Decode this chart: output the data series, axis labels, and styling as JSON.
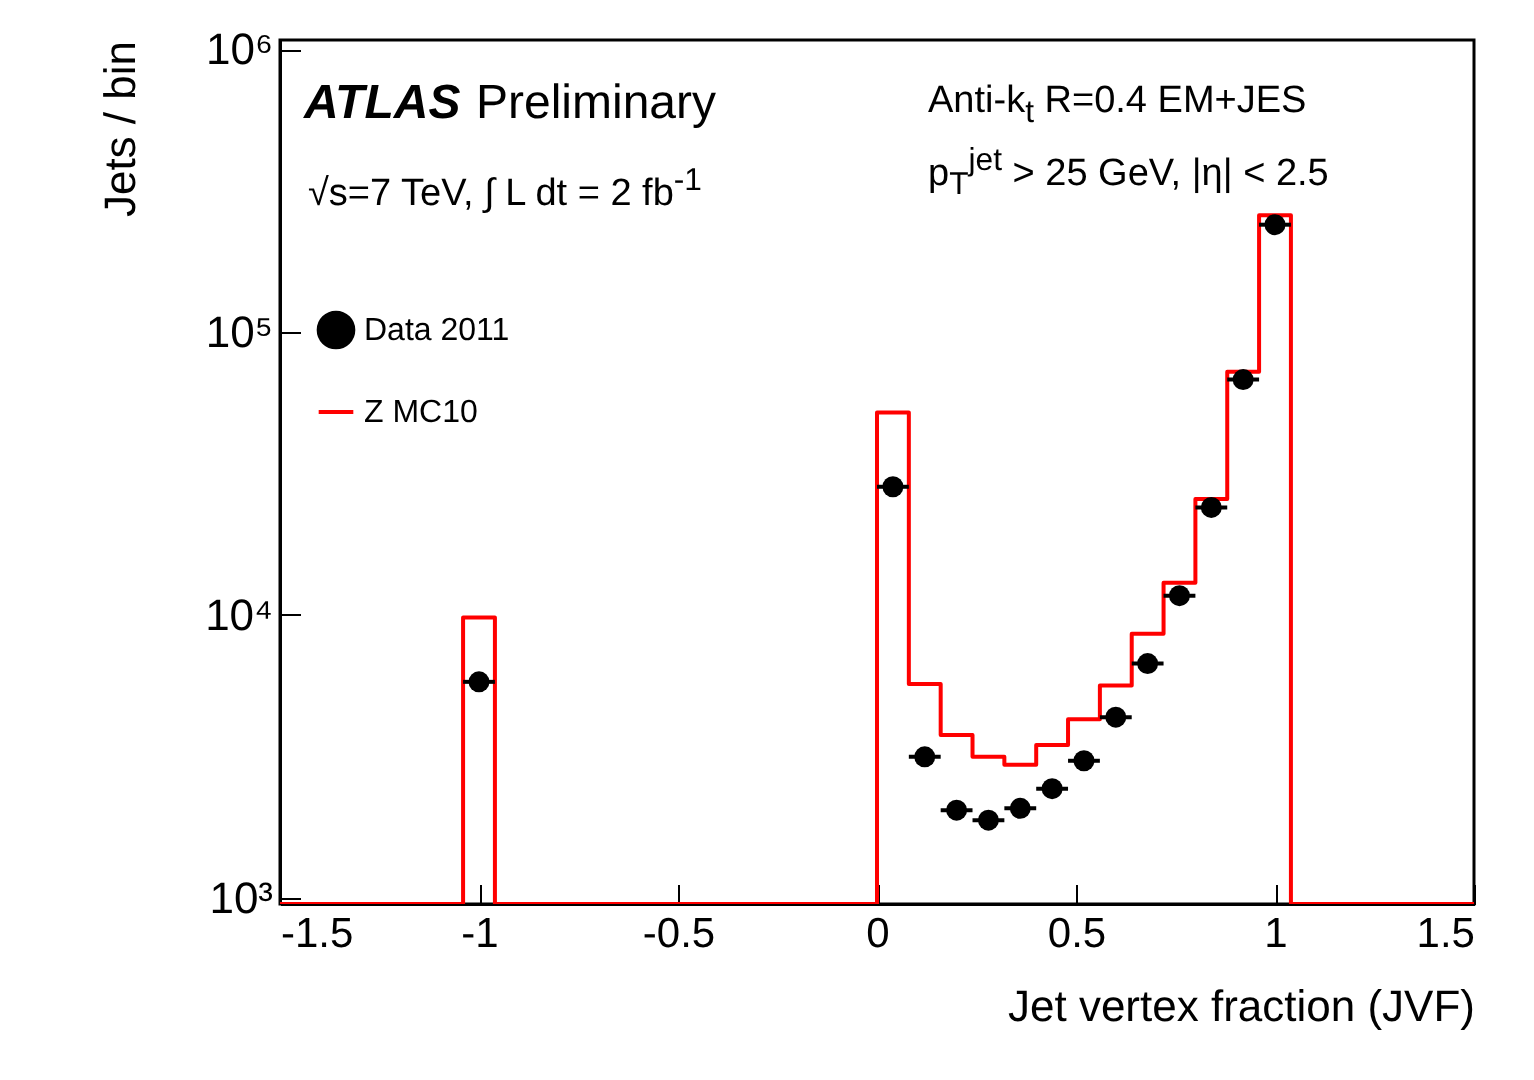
{
  "chart_data": {
    "type": "histogram",
    "xlabel": "Jet vertex fraction (JVF)",
    "ylabel": "Jets / bin",
    "annotations": [
      "ATLAS",
      "Preliminary",
      "√s=7 TeV,  ∫ L dt = 2 fb$^{-1}$",
      "Anti-k$_{t}$ R=0.4 EM+JES",
      "p$_{T}$$^{jet}$ > 25 GeV, |η| < 2.5"
    ],
    "bins": [
      -1.5,
      -1.04,
      -0.96,
      0,
      0.08,
      0.16,
      0.24,
      0.32,
      0.4,
      0.48,
      0.56,
      0.64,
      0.72,
      0.8,
      0.88,
      0.96,
      1.04,
      1.5
    ],
    "series": [
      {
        "name": "Data 2011",
        "type": "scatter",
        "color": "#000000",
        "x": [
          -1,
          0.04,
          0.12,
          0.2,
          0.28,
          0.36,
          0.44,
          0.52,
          0.6,
          0.68,
          0.76,
          0.84,
          0.92,
          1.0
        ],
        "values": [
          5800,
          28400,
          3150,
          2040,
          1880,
          2070,
          2430,
          3050,
          4350,
          6730,
          11700,
          24000,
          68000,
          240000
        ],
        "xerrors": [
          0.04,
          0.04,
          0.04,
          0.04,
          0.04,
          0.04,
          0.04,
          0.04,
          0.04,
          0.04,
          0.04,
          0.04,
          0.04,
          0.04
        ]
      },
      {
        "name": "Z MC10",
        "color": "#ff0000",
        "values": [
          null,
          9800,
          null,
          52000,
          5700,
          3760,
          3150,
          2950,
          3470,
          4280,
          5630,
          8580,
          13000,
          25700,
          72400,
          259000,
          null
        ]
      }
    ],
    "xlim": [
      -1.5,
      1.5
    ],
    "xticks": [
      -1.5,
      -1,
      -0.5,
      0,
      0.5,
      1,
      1.5
    ],
    "ylim": [
      950,
      1080000
    ],
    "yticks": [
      {
        "value": 1000,
        "label": "10³"
      },
      {
        "value": 10000,
        "label": "10⁴"
      },
      {
        "value": 100000,
        "label": "10⁵"
      },
      {
        "value": 1000000,
        "label": "10⁶"
      }
    ],
    "log": "y",
    "grid": false,
    "legend": "top left",
    "marker": "circle"
  }
}
